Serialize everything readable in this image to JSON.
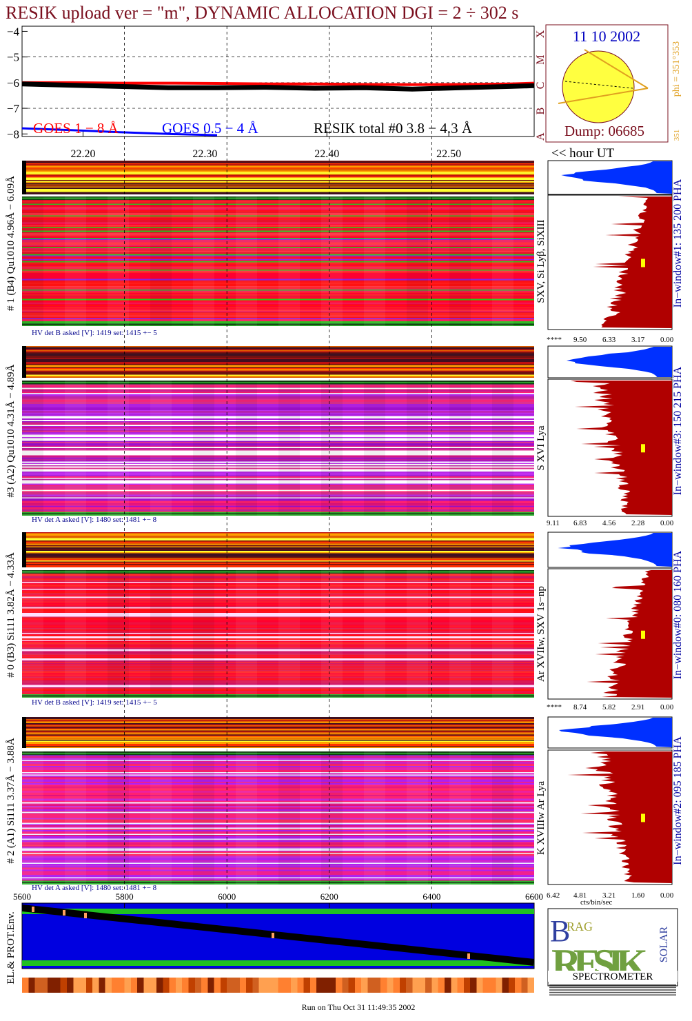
{
  "chart_data": [
    {
      "type": "line",
      "title": "RESIK upload ver = \"m\", DYNAMIC ALLOCATION  DGI =   2 ÷ 302 s",
      "xlabel": "<< hour UT",
      "x": [
        22.15,
        22.19,
        22.23,
        22.27,
        22.31,
        22.35,
        22.39,
        22.43,
        22.47,
        22.51,
        22.55,
        22.57
      ],
      "xlim": [
        22.15,
        22.57
      ],
      "xticks": [
        {
          "value": 22.2,
          "label": "22.20"
        },
        {
          "value": 22.3,
          "label": "22.30"
        },
        {
          "value": 22.4,
          "label": "22.40"
        },
        {
          "value": 22.5,
          "label": "22.50"
        }
      ],
      "ylim": [
        -8.1,
        -3.8
      ],
      "yticks": [
        {
          "value": -4,
          "label": "−4"
        },
        {
          "value": -5,
          "label": "−5"
        },
        {
          "value": -6,
          "label": "−6"
        },
        {
          "value": -7,
          "label": "−7"
        },
        {
          "value": -8,
          "label": "−8"
        }
      ],
      "grid": true,
      "series": [
        {
          "name": "GOES 1 − 8 Å",
          "color": "#ff0000",
          "values": [
            -6.0,
            -6.0,
            -6.02,
            -6.02,
            -6.03,
            -6.05,
            -6.05,
            -6.07,
            -6.08,
            -6.07,
            -6.05,
            -6.02
          ]
        },
        {
          "name": "GOES 0.5 − 4 Å",
          "color": "#0000ff",
          "values": [
            -7.78,
            -7.85,
            -7.93,
            -8.0,
            -8.05,
            null,
            null,
            null,
            null,
            null,
            null,
            null
          ]
        },
        {
          "name": "RESIK total #0  3.8 − 4.3 Å",
          "color": "#000000",
          "values": [
            -6.05,
            -6.1,
            -6.15,
            -6.2,
            -6.2,
            -6.18,
            -6.22,
            -6.2,
            -6.25,
            -6.2,
            -6.15,
            -6.12
          ]
        }
      ]
    },
    {
      "type": "heatmap",
      "ylabel": "EL.& PROT.Env.",
      "xlim": [
        5600,
        6600
      ],
      "xticks": [
        5600,
        5800,
        6000,
        6200,
        6400,
        6600
      ]
    }
  ],
  "side": {
    "classes": [
      "A",
      "B",
      "C",
      "M",
      "X"
    ],
    "date": "11 10 2002",
    "dump": "Dump: 06685",
    "phi": "phi = 351°353",
    "phi_low": "351"
  },
  "panels": [
    {
      "label": "# 1 (B4) Qu1010 4.96Å − 6.09Å",
      "lines": "SXV, Si Lyβ, SiXIII",
      "window": "In−window#1:  135 200 PHA",
      "hv": "HV det B asked [V]:  1419 set:  1415 +−   5",
      "scale": [
        "****",
        "9.50",
        "6.33",
        "3.17",
        "0.00"
      ]
    },
    {
      "label": "#3 (A2) Qu1010  4.31Å − 4.89Å",
      "lines": "S XVI Lya",
      "window": "In−window#3:  150 215 PHA",
      "hv": "HV det A asked [V]:  1480 set:  1481 +−   8",
      "scale": [
        "9.11",
        "6.83",
        "4.56",
        "2.28",
        "0.00"
      ]
    },
    {
      "label": "# 0 (B3) Si111  3.82Å − 4.33Å",
      "lines": "Ar XVIIw,  SXV 1s−np",
      "window": "In−window#0:  080 160 PHA",
      "hv": "HV det B asked [V]:  1419 set:  1415 +−   5",
      "scale": [
        "****",
        "8.74",
        "5.82",
        "2.91",
        "0.00"
      ]
    },
    {
      "label": "# 2 (A1) Si111  3.37Å − 3.88Å",
      "lines": "K XVIIIw  Ar Lya",
      "window": "In−window#2:  095 185 PHA",
      "hv": "HV det A asked [V]:  1480 set:  1481 +−   8",
      "scale": [
        "6.42",
        "4.81",
        "3.21",
        "1.60",
        "0.00"
      ]
    }
  ],
  "scale_unit": "cts/bin/sec",
  "logo": {
    "top": "RAG",
    "main": "RESIK",
    "side": "SOLAR",
    "bottom": "SPECTROMETER"
  },
  "footer": "Run on Thu Oct 31 11:49:35 2002"
}
